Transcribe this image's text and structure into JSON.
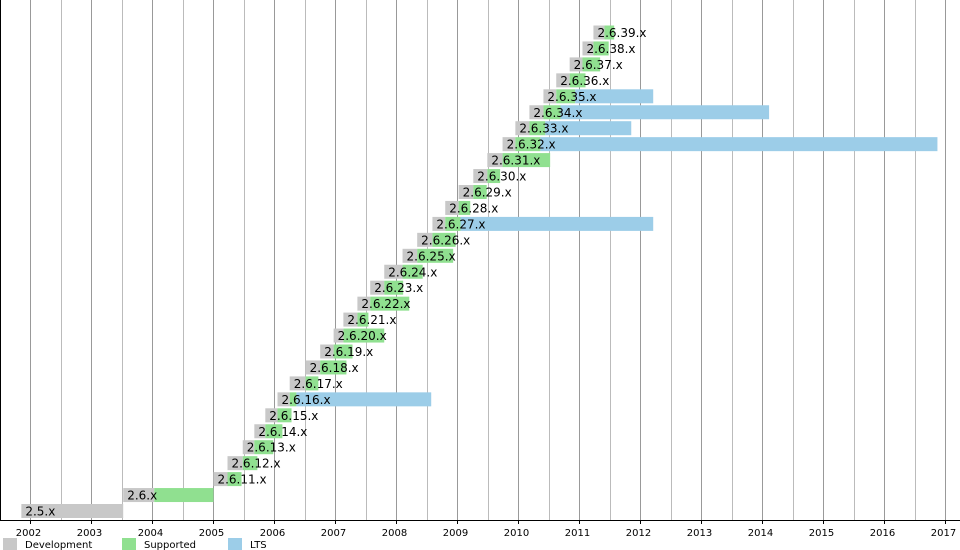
{
  "chart_data": {
    "type": "timeline",
    "categories": [
      "2.5.x",
      "2.6.x",
      "2.6.11.x",
      "2.6.12.x",
      "2.6.13.x",
      "2.6.14.x",
      "2.6.15.x",
      "2.6.16.x",
      "2.6.17.x",
      "2.6.18.x",
      "2.6.19.x",
      "2.6.20.x",
      "2.6.21.x",
      "2.6.22.x",
      "2.6.23.x",
      "2.6.24.x",
      "2.6.25.x",
      "2.6.26.x",
      "2.6.27.x",
      "2.6.28.x",
      "2.6.29.x",
      "2.6.30.x",
      "2.6.31.x",
      "2.6.32.x",
      "2.6.33.x",
      "2.6.34.x",
      "2.6.35.x",
      "2.6.36.x",
      "2.6.37.x",
      "2.6.38.x",
      "2.6.39.x"
    ],
    "series": [
      {
        "name": "Development",
        "color": "#c8c8c8",
        "values": [
          [
            2001.85,
            2003.52
          ],
          [
            2003.52,
            2004.03
          ],
          [
            2005.0,
            2005.23
          ],
          [
            2005.23,
            2005.48
          ],
          [
            2005.48,
            2005.67
          ],
          [
            2005.67,
            2005.85
          ],
          [
            2005.85,
            2006.05
          ],
          [
            2006.05,
            2006.25
          ],
          [
            2006.25,
            2006.51
          ],
          [
            2006.51,
            2006.75
          ],
          [
            2006.75,
            2006.97
          ],
          [
            2006.97,
            2007.13
          ],
          [
            2007.13,
            2007.36
          ],
          [
            2007.36,
            2007.57
          ],
          [
            2007.57,
            2007.8
          ],
          [
            2007.8,
            2008.1
          ],
          [
            2008.1,
            2008.34
          ],
          [
            2008.34,
            2008.59
          ],
          [
            2008.59,
            2008.8
          ],
          [
            2008.8,
            2009.02
          ],
          [
            2009.02,
            2009.26
          ],
          [
            2009.26,
            2009.49
          ],
          [
            2009.49,
            2009.74
          ],
          [
            2009.74,
            2009.95
          ],
          [
            2009.95,
            2010.18
          ],
          [
            2010.18,
            2010.41
          ],
          [
            2010.41,
            2010.62
          ],
          [
            2010.62,
            2010.84
          ],
          [
            2010.84,
            2011.05
          ],
          [
            2011.05,
            2011.23
          ],
          [
            2011.23,
            2011.41
          ]
        ]
      },
      {
        "name": "Supported",
        "color": "#90e090",
        "values": [
          null,
          [
            2004.03,
            2005.0
          ],
          [
            2005.23,
            2005.46
          ],
          [
            2005.48,
            2005.72
          ],
          [
            2005.67,
            2005.98
          ],
          [
            2005.85,
            2006.13
          ],
          [
            2006.05,
            2006.28
          ],
          [
            2006.25,
            2006.36
          ],
          [
            2006.51,
            2006.72
          ],
          [
            2006.75,
            2007.18
          ],
          [
            2006.97,
            2007.28
          ],
          [
            2007.13,
            2007.8
          ],
          [
            2007.36,
            2007.54
          ],
          [
            2007.57,
            2008.21
          ],
          [
            2007.8,
            2008.11
          ],
          [
            2008.1,
            2008.43
          ],
          [
            2008.34,
            2008.93
          ],
          [
            2008.59,
            2008.97
          ],
          [
            2008.8,
            2009.05
          ],
          [
            2009.02,
            2009.21
          ],
          [
            2009.26,
            2009.48
          ],
          [
            2009.49,
            2009.7
          ],
          [
            2009.74,
            2010.52
          ],
          [
            2009.95,
            2010.36
          ],
          [
            2010.18,
            2010.44
          ],
          [
            2010.41,
            2010.69
          ],
          [
            2010.62,
            2010.93
          ],
          [
            2010.84,
            2011.1
          ],
          [
            2011.05,
            2011.34
          ],
          [
            2011.23,
            2011.48
          ],
          [
            2011.41,
            2011.57
          ]
        ]
      },
      {
        "name": "LTS",
        "color": "#9ccde8",
        "values": [
          null,
          null,
          null,
          null,
          null,
          null,
          null,
          [
            2006.36,
            2008.57
          ],
          null,
          null,
          null,
          null,
          null,
          null,
          null,
          null,
          null,
          null,
          [
            2009.05,
            2012.21
          ],
          null,
          null,
          null,
          null,
          [
            2010.36,
            2016.87
          ],
          [
            2010.44,
            2011.85
          ],
          [
            2010.69,
            2014.11
          ],
          [
            2010.93,
            2012.21
          ],
          null,
          null,
          null,
          null
        ]
      }
    ],
    "xlim": [
      2001.5,
      2017.24
    ],
    "xticks": [
      2002,
      2003,
      2004,
      2005,
      2006,
      2007,
      2008,
      2009,
      2010,
      2011,
      2012,
      2013,
      2014,
      2015,
      2016,
      2017
    ],
    "xminorticks": [
      2002.5,
      2003.5,
      2004.5,
      2005.5,
      2006.5,
      2007.5,
      2008.5,
      2009.5,
      2010.5,
      2011.5,
      2012.5,
      2013.5,
      2014.5,
      2015.5,
      2016.5
    ],
    "grid": true,
    "legend": "bottom"
  }
}
